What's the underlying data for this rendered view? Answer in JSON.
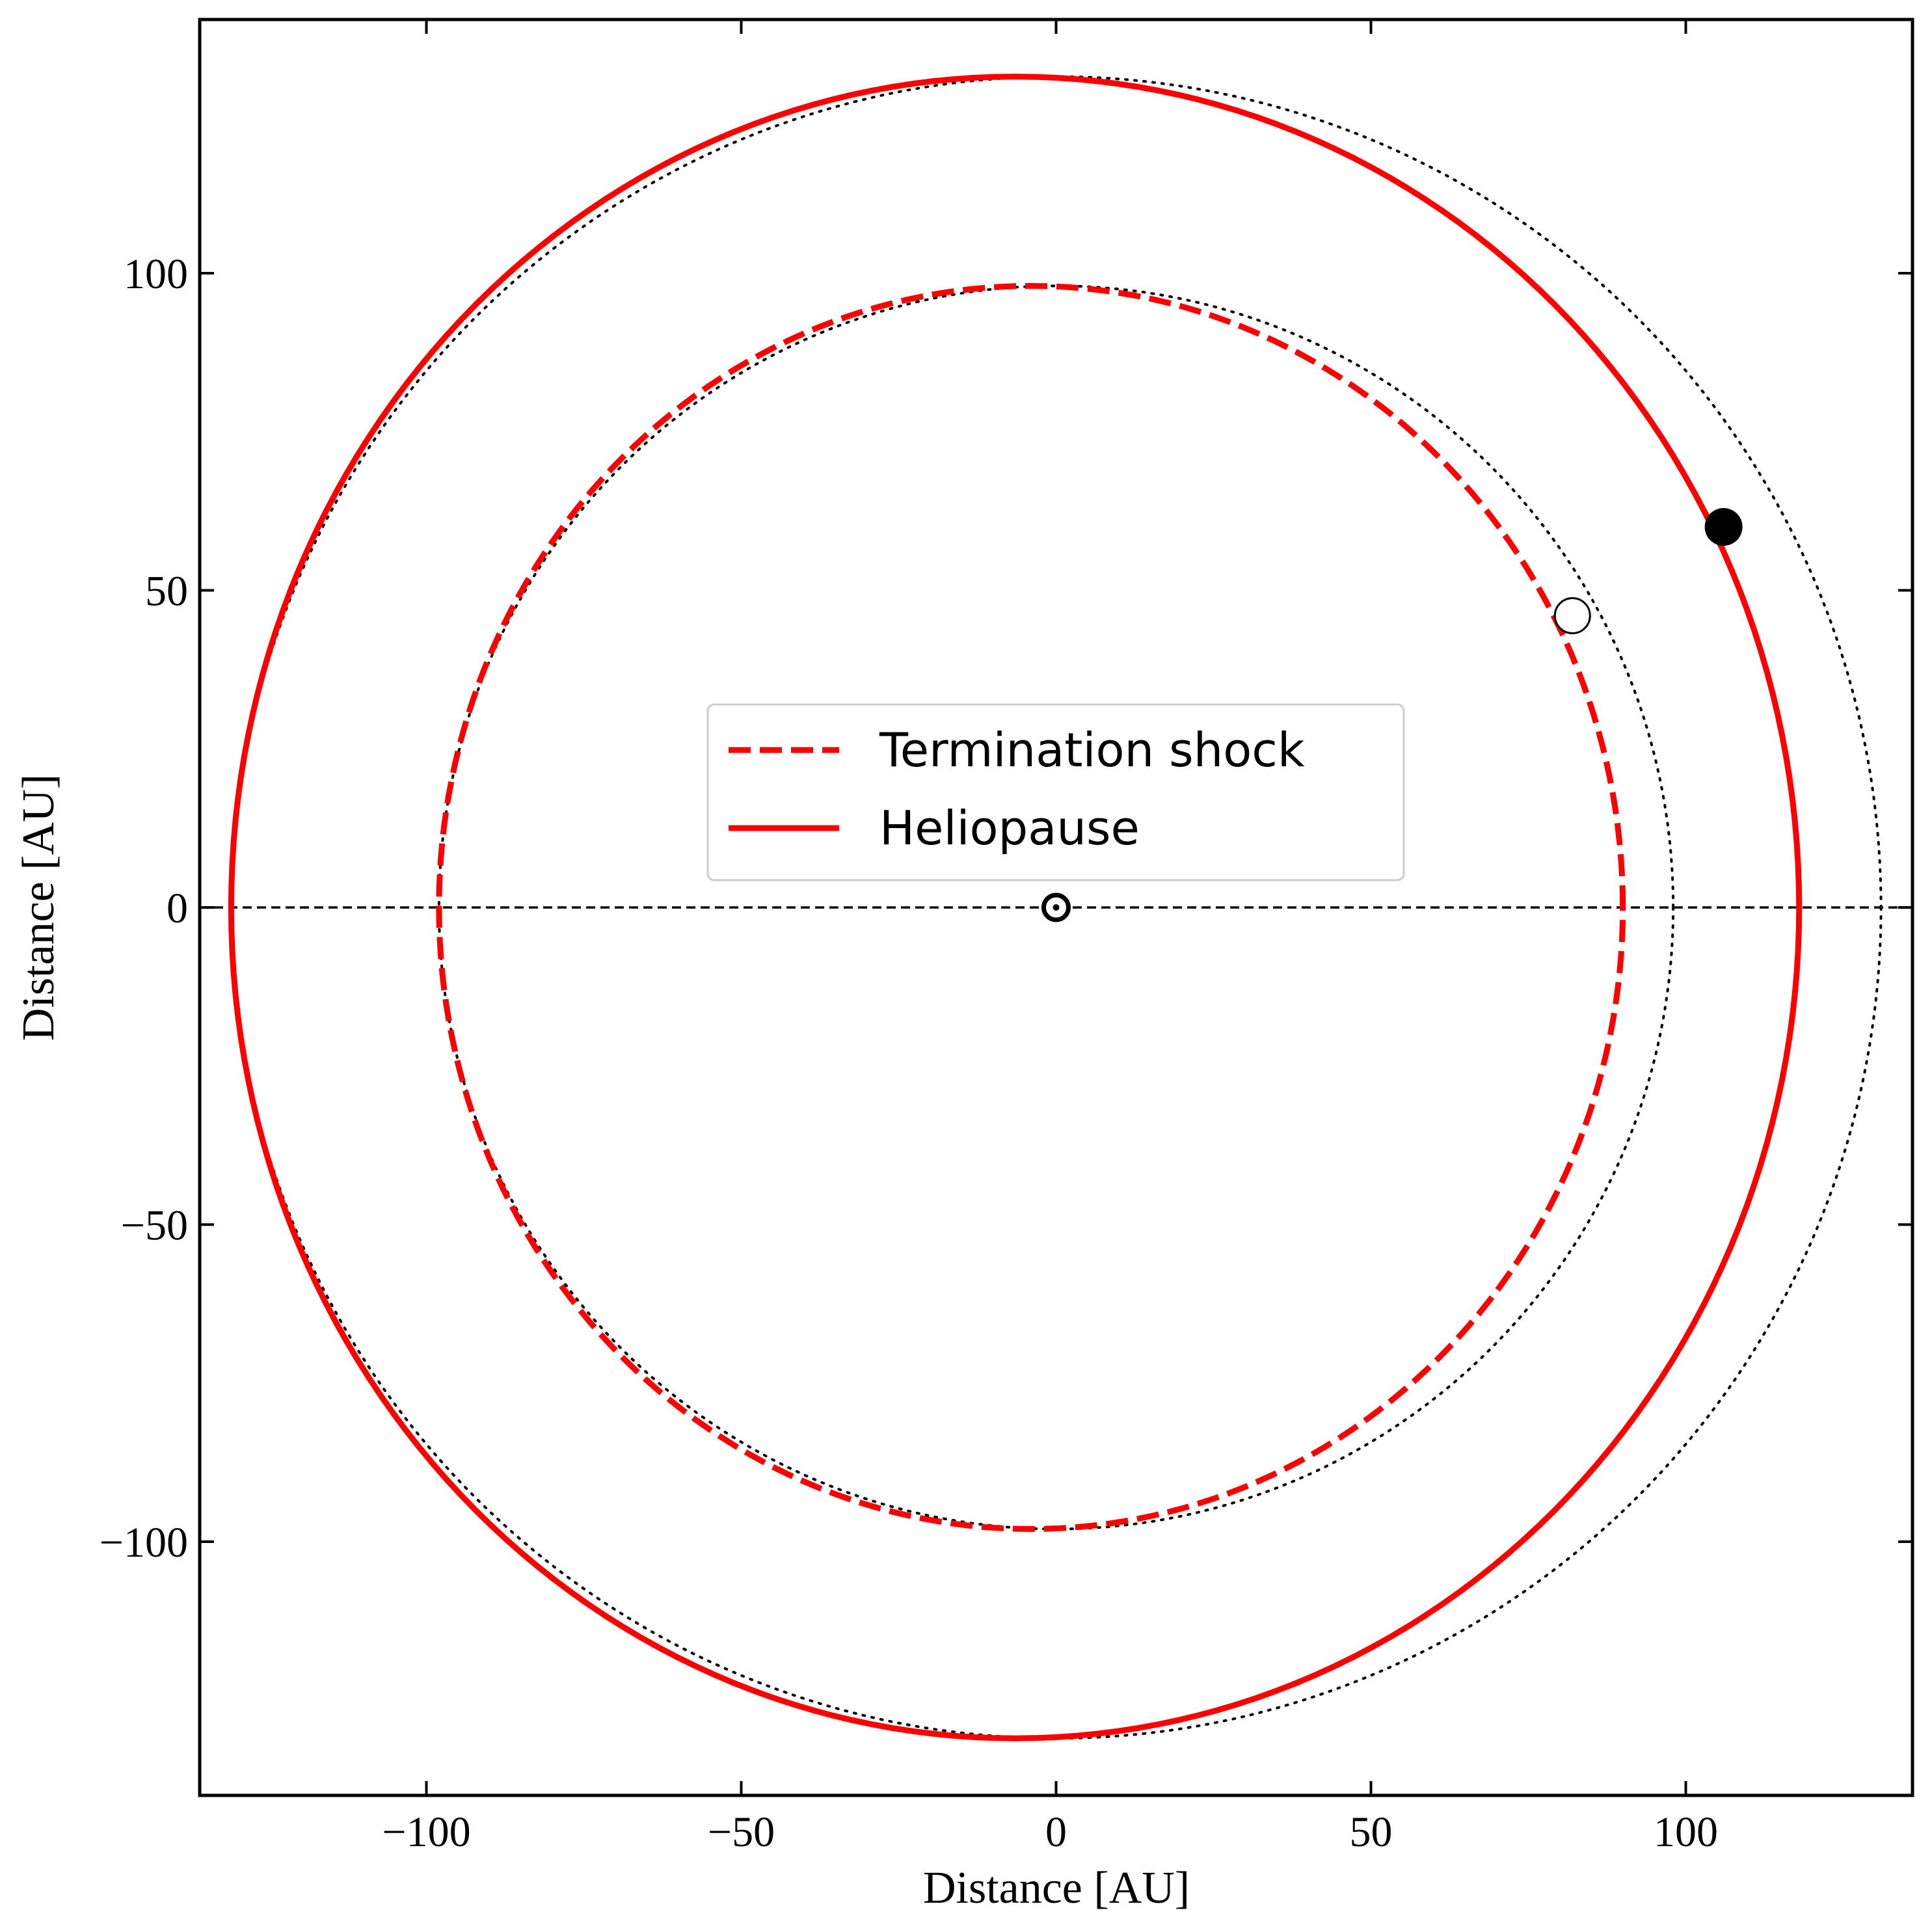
{
  "chart_data": {
    "type": "line",
    "xlabel": "Distance [AU]",
    "ylabel": "Distance [AU]",
    "xlim": [
      -136,
      136
    ],
    "ylim": [
      -140,
      140
    ],
    "xticks": [
      -100,
      -50,
      0,
      50,
      100
    ],
    "yticks": [
      -100,
      -50,
      0,
      50,
      100
    ],
    "x_tick_labels": [
      "−100",
      "−50",
      "0",
      "50",
      "100"
    ],
    "y_tick_labels": [
      "−100",
      "−50",
      "0",
      "50",
      "100"
    ],
    "grid": false,
    "legend_position": "center",
    "series": [
      {
        "name": "Termination shock",
        "style": "dashed",
        "color": "#ff0000",
        "shape": {
          "x_min": -98,
          "x_max": 90,
          "y_top": 98,
          "y_bottom": -98
        }
      },
      {
        "name": "Heliopause",
        "style": "solid",
        "color": "#ff0000",
        "shape": {
          "x_min": -131,
          "x_max": 118,
          "y_top": 131,
          "y_bottom": -131
        }
      }
    ],
    "reference_circles": [
      {
        "radius": 98,
        "style": "dotted",
        "color": "#000000"
      },
      {
        "radius": 131,
        "style": "dotted",
        "color": "#000000"
      }
    ],
    "horizontal_line": {
      "y": 0,
      "style": "dashed",
      "color": "#000000"
    },
    "markers": [
      {
        "label": "sun",
        "x": 0,
        "y": 0,
        "symbol": "circled-dot"
      },
      {
        "label": "filled",
        "x": 106,
        "y": 60,
        "symbol": "filled-circle"
      },
      {
        "label": "open",
        "x": 82,
        "y": 46,
        "symbol": "open-circle"
      }
    ]
  }
}
